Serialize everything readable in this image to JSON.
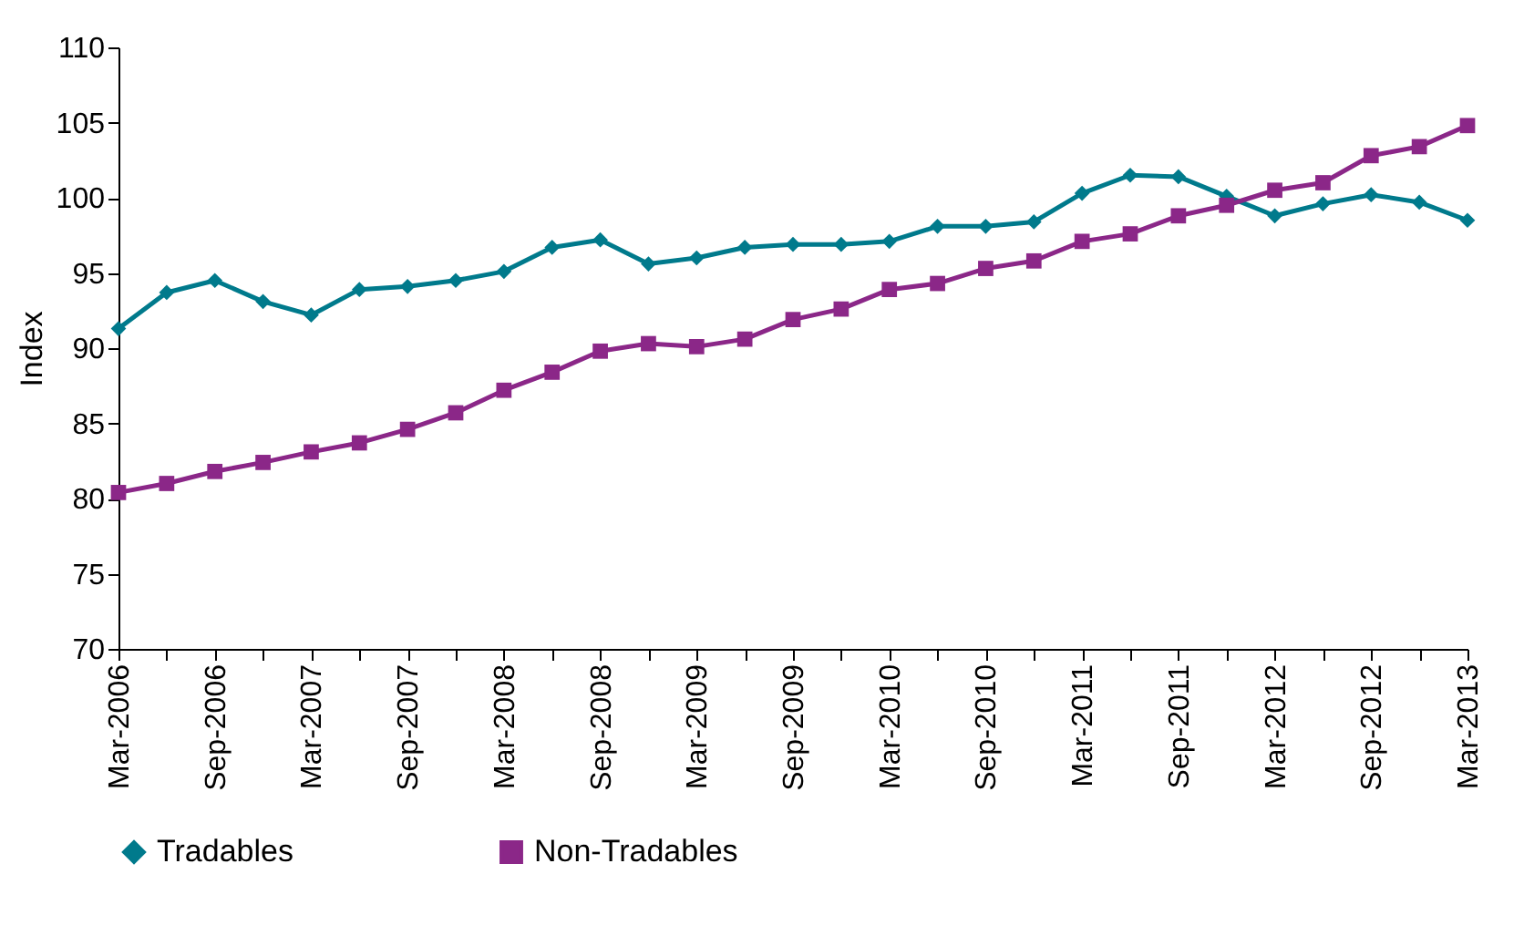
{
  "chart_data": {
    "type": "line",
    "ylabel": "Index",
    "categories": [
      "Mar-2006",
      null,
      "Sep-2006",
      null,
      "Mar-2007",
      null,
      "Sep-2007",
      null,
      "Mar-2008",
      null,
      "Sep-2008",
      null,
      "Mar-2009",
      null,
      "Sep-2009",
      null,
      "Mar-2010",
      null,
      "Sep-2010",
      null,
      "Mar-2011",
      null,
      "Sep-2011",
      null,
      "Mar-2012",
      null,
      "Sep-2012",
      null,
      "Mar-2013"
    ],
    "series": [
      {
        "name": "Tradables",
        "color": "#007a8c",
        "marker": "diamond",
        "values": [
          91.3,
          93.7,
          94.5,
          93.1,
          92.2,
          93.9,
          94.1,
          94.5,
          95.1,
          96.7,
          97.2,
          95.6,
          96.0,
          96.7,
          96.9,
          96.9,
          97.1,
          98.1,
          98.1,
          98.4,
          100.3,
          101.5,
          101.4,
          100.1,
          98.8,
          99.6,
          100.2,
          99.7,
          98.5
        ]
      },
      {
        "name": "Non-Tradables",
        "color": "#8b2788",
        "marker": "square",
        "values": [
          80.4,
          81.0,
          81.8,
          82.4,
          83.1,
          83.7,
          84.6,
          85.7,
          87.2,
          88.4,
          89.8,
          90.3,
          90.1,
          90.6,
          91.9,
          92.6,
          93.9,
          94.3,
          95.3,
          95.8,
          97.1,
          97.6,
          98.8,
          99.5,
          100.5,
          101.0,
          102.8,
          103.4,
          104.8
        ]
      }
    ],
    "ylim": [
      70,
      110
    ],
    "yticks": [
      70,
      75,
      80,
      85,
      90,
      95,
      100,
      105,
      110
    ],
    "grid": false,
    "legend": "bottom"
  }
}
